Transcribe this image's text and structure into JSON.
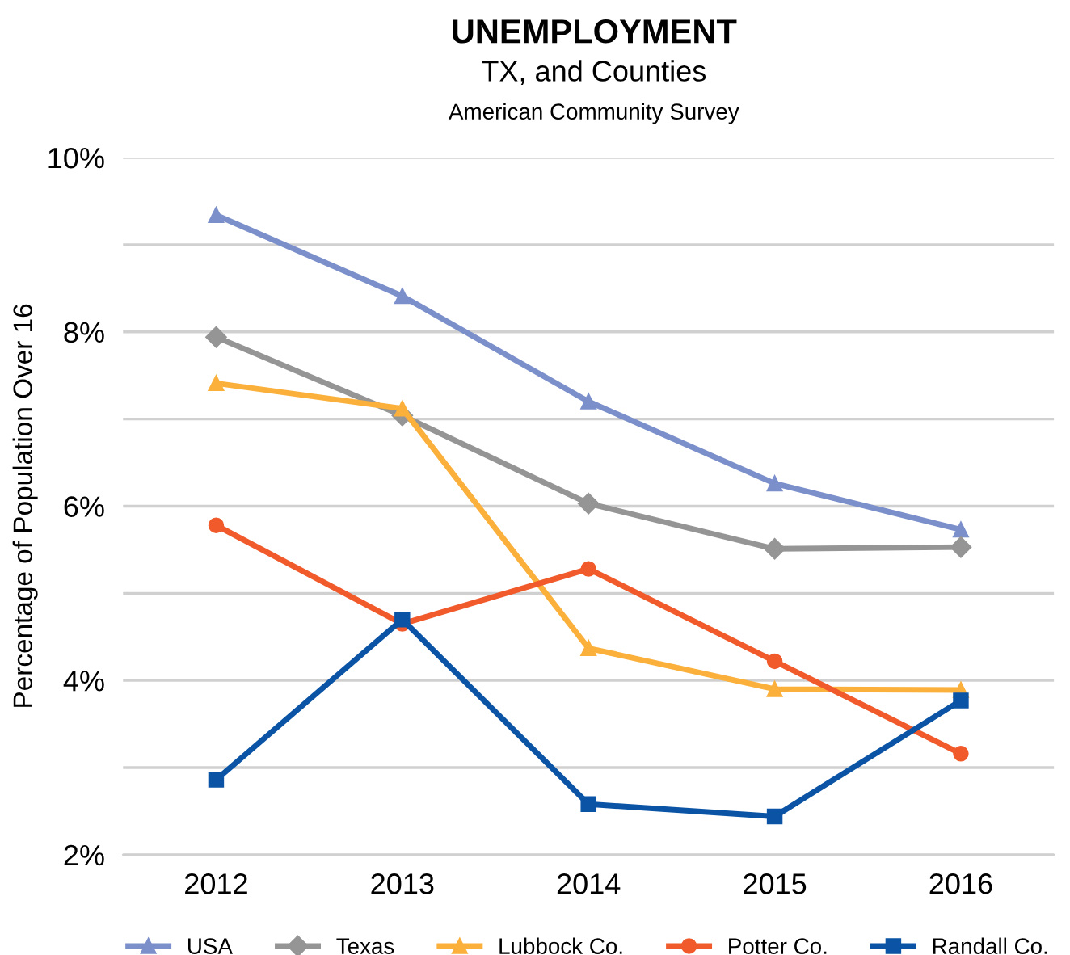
{
  "chart_data": {
    "type": "line",
    "title": "UNEMPLOYMENT",
    "subtitle": "TX, and Counties",
    "annotations": [
      "American Community Survey"
    ],
    "ylabel": "Percentage of Population Over 16",
    "categories": [
      "2012",
      "2013",
      "2014",
      "2015",
      "2016"
    ],
    "series": [
      {
        "name": "USA",
        "color": "#7b8fcb",
        "marker": "triangle",
        "values": [
          9.34,
          8.41,
          7.2,
          6.26,
          5.73
        ]
      },
      {
        "name": "Texas",
        "color": "#959595",
        "marker": "diamond",
        "values": [
          7.94,
          7.04,
          6.03,
          5.51,
          5.53
        ]
      },
      {
        "name": "Lubbock Co.",
        "color": "#fbb03b",
        "marker": "triangle",
        "values": [
          7.41,
          7.12,
          4.37,
          3.9,
          3.89
        ]
      },
      {
        "name": "Potter Co.",
        "color": "#f15a2b",
        "marker": "circle",
        "values": [
          5.78,
          4.65,
          5.28,
          4.22,
          3.16
        ]
      },
      {
        "name": "Randall Co.",
        "color": "#0b54a5",
        "marker": "square",
        "values": [
          2.86,
          4.7,
          2.58,
          2.44,
          3.77
        ]
      }
    ],
    "ylim": [
      2,
      10
    ],
    "yticks": [
      {
        "value": 2,
        "label": "2%"
      },
      {
        "value": 3,
        "label": null
      },
      {
        "value": 4,
        "label": "4%"
      },
      {
        "value": 5,
        "label": null
      },
      {
        "value": 6,
        "label": "6%"
      },
      {
        "value": 7,
        "label": null
      },
      {
        "value": 8,
        "label": "8%"
      },
      {
        "value": 9,
        "label": null
      },
      {
        "value": 10,
        "label": "10%"
      }
    ],
    "grid": "y",
    "legend": "bottom",
    "line_style": "solid"
  }
}
